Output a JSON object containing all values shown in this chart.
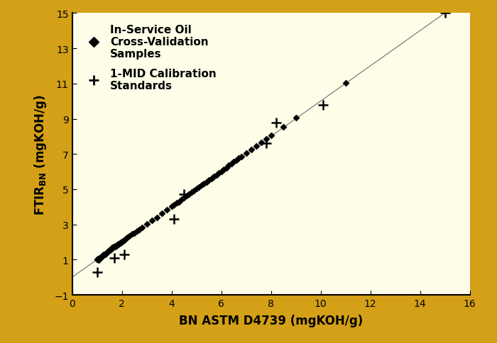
{
  "background_outer": "#D4A017",
  "background_inner": "#FDFDE8",
  "xlabel": "BN ASTM D4739 (mgKOH/g)",
  "ylabel_latex": "FTIR$_{BN}$ (mgKOH/g)",
  "xlim": [
    0,
    16
  ],
  "ylim": [
    -1,
    15
  ],
  "xticks": [
    0,
    2,
    4,
    6,
    8,
    10,
    12,
    14,
    16
  ],
  "yticks": [
    -1,
    1,
    3,
    5,
    7,
    9,
    11,
    13,
    15
  ],
  "refline_x": [
    0,
    15
  ],
  "refline_y": [
    0,
    15
  ],
  "legend_diamond_label": "In-Service Oil\nCross-Validation\nSamples",
  "legend_plus_label": "1-MID Calibration\nStandards",
  "diamond_points_x": [
    1.0,
    1.02,
    1.05,
    1.08,
    1.1,
    1.12,
    1.15,
    1.18,
    1.2,
    1.22,
    1.25,
    1.28,
    1.3,
    1.32,
    1.35,
    1.38,
    1.4,
    1.42,
    1.45,
    1.48,
    1.5,
    1.52,
    1.55,
    1.58,
    1.6,
    1.62,
    1.65,
    1.68,
    1.7,
    1.72,
    1.75,
    1.78,
    1.8,
    1.82,
    1.85,
    1.88,
    1.9,
    1.92,
    1.95,
    1.98,
    2.0,
    2.05,
    2.1,
    2.15,
    2.2,
    2.3,
    2.4,
    2.5,
    2.6,
    2.7,
    2.8,
    3.0,
    3.2,
    3.4,
    3.6,
    3.8,
    4.0,
    4.1,
    4.2,
    4.3,
    4.4,
    4.5,
    4.6,
    4.7,
    4.8,
    4.9,
    5.0,
    5.1,
    5.2,
    5.3,
    5.4,
    5.5,
    5.6,
    5.7,
    5.8,
    5.9,
    6.0,
    6.1,
    6.2,
    6.3,
    6.4,
    6.5,
    6.6,
    6.7,
    6.8,
    7.0,
    7.2,
    7.4,
    7.6,
    7.8,
    8.0,
    8.5,
    9.0,
    11.0
  ],
  "diamond_points_y": [
    1.0,
    1.02,
    1.05,
    0.98,
    1.08,
    1.1,
    1.15,
    1.12,
    1.2,
    1.22,
    1.25,
    1.28,
    1.3,
    1.28,
    1.35,
    1.38,
    1.4,
    1.42,
    1.45,
    1.48,
    1.52,
    1.55,
    1.58,
    1.62,
    1.65,
    1.68,
    1.7,
    1.72,
    1.75,
    1.72,
    1.78,
    1.8,
    1.82,
    1.85,
    1.88,
    1.9,
    1.92,
    1.95,
    1.98,
    2.0,
    2.02,
    2.08,
    2.12,
    2.18,
    2.25,
    2.35,
    2.45,
    2.52,
    2.62,
    2.72,
    2.82,
    3.02,
    3.22,
    3.38,
    3.62,
    3.82,
    4.02,
    4.12,
    4.22,
    4.28,
    4.42,
    4.52,
    4.62,
    4.72,
    4.82,
    4.92,
    5.02,
    5.12,
    5.22,
    5.32,
    5.42,
    5.52,
    5.62,
    5.72,
    5.82,
    5.92,
    6.02,
    6.12,
    6.22,
    6.35,
    6.45,
    6.55,
    6.65,
    6.75,
    6.85,
    7.05,
    7.25,
    7.45,
    7.65,
    7.85,
    8.05,
    8.55,
    9.05,
    11.05
  ],
  "plus_points_x": [
    1.0,
    1.7,
    2.1,
    4.1,
    4.5,
    7.8,
    8.2,
    10.1,
    15.0
  ],
  "plus_points_y": [
    0.3,
    1.1,
    1.3,
    3.3,
    4.7,
    7.6,
    8.8,
    9.8,
    15.0
  ],
  "marker_color": "#000000",
  "line_color": "#888888",
  "fontsize_axis_label": 12,
  "fontsize_ticks": 10,
  "fontsize_legend": 11
}
